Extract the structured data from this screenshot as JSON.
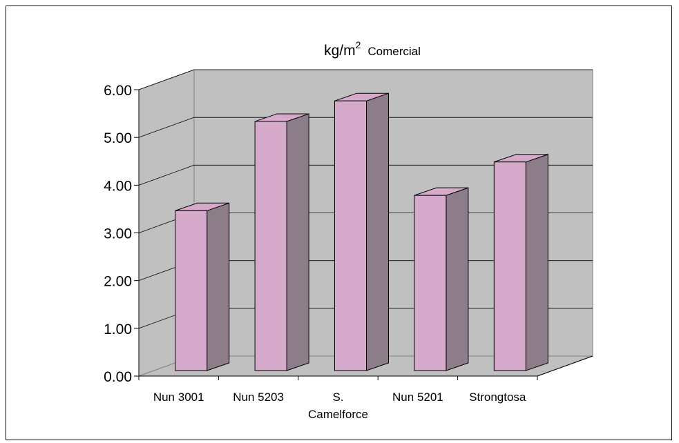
{
  "chart_data": {
    "type": "bar",
    "title_main": "kg/m",
    "title_sup": "2",
    "title_rest": "Comercial",
    "categories": [
      [
        "Nun 3001"
      ],
      [
        "Nun 5203"
      ],
      [
        "S.",
        "Camelforce"
      ],
      [
        "Nun 5201"
      ],
      [
        "Strongtosa"
      ]
    ],
    "values": [
      3.35,
      5.22,
      5.65,
      3.67,
      4.37
    ],
    "ylim": [
      0,
      6
    ],
    "yticks": [
      "0.00",
      "1.00",
      "2.00",
      "3.00",
      "4.00",
      "5.00",
      "6.00"
    ],
    "grid": true,
    "three_d": true
  },
  "colors": {
    "bar_front": "#d5aacb",
    "bar_side": "#8c7d88",
    "bar_top": "#d5aacb",
    "wall": "#c0c0c0",
    "floor": "#c0c0c0",
    "grid": "#000000"
  }
}
